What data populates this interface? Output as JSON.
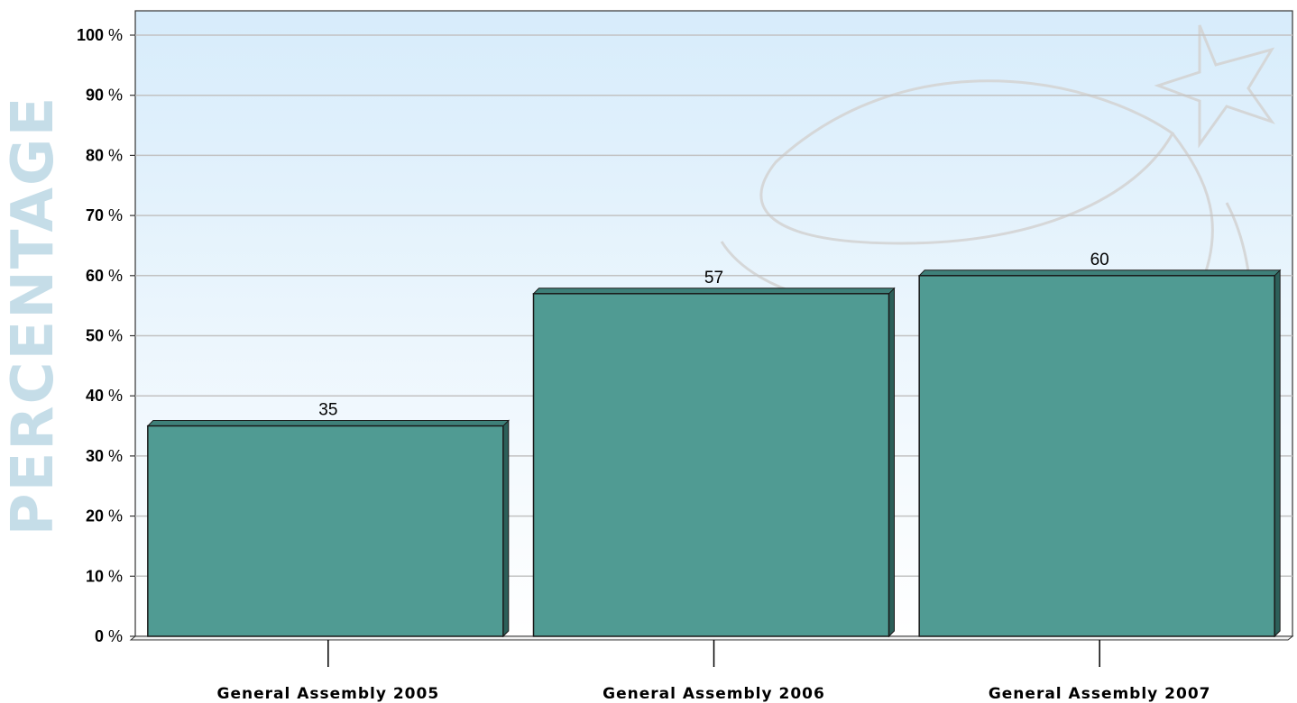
{
  "chart_data": {
    "type": "bar",
    "title": "",
    "xlabel": "",
    "ylabel": "PERCENTAGE",
    "categories": [
      "General Assembly 2005",
      "General Assembly 2006",
      "General Assembly 2007"
    ],
    "values": [
      35,
      57,
      60
    ],
    "data_labels": [
      "35",
      "57",
      "60"
    ],
    "ylim": [
      0,
      100
    ],
    "yticks": [
      0,
      10,
      20,
      30,
      40,
      50,
      60,
      70,
      80,
      90,
      100
    ],
    "ytick_suffix": " %",
    "grid": true,
    "legend": "none",
    "colors": {
      "bar_face": "#509b93",
      "bar_top": "#3e8079",
      "bar_side": "#2c5f59",
      "bar_outline": "#1a1a1a",
      "plot_bg_top": "#d7ecfb",
      "plot_bg_bottom": "#ffffff",
      "gridline": "#c2c2c2",
      "axis_title": "#c5dde8",
      "watermark": "#d6d6d6"
    }
  }
}
